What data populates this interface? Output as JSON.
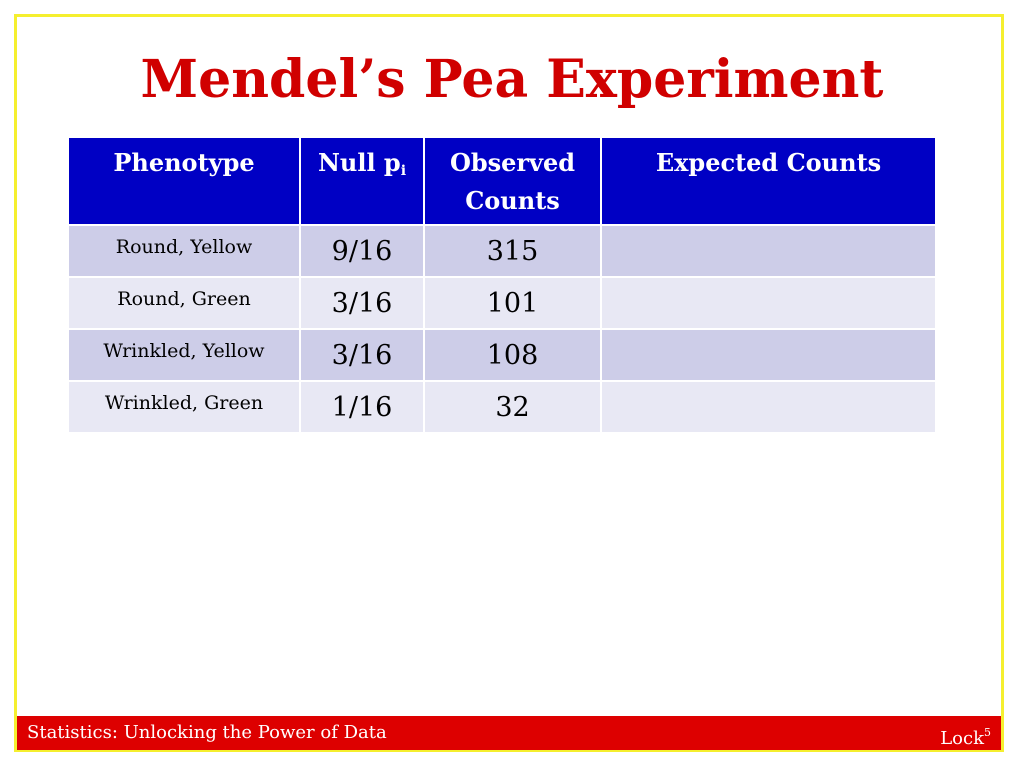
{
  "slide": {
    "title": "Mendel’s Pea Experiment"
  },
  "table": {
    "headers": {
      "phenotype": "Phenotype",
      "null_p": "Null p",
      "null_p_sub": "i",
      "observed_line1": "Observed",
      "observed_line2": "Counts",
      "expected": "Expected Counts"
    },
    "rows": [
      {
        "phenotype": "Round, Yellow",
        "null_p": "9/16",
        "observed": "315",
        "expected": ""
      },
      {
        "phenotype": "Round, Green",
        "null_p": "3/16",
        "observed": "101",
        "expected": ""
      },
      {
        "phenotype": "Wrinkled, Yellow",
        "null_p": "3/16",
        "observed": "108",
        "expected": ""
      },
      {
        "phenotype": "Wrinkled, Green",
        "null_p": "1/16",
        "observed": "32",
        "expected": ""
      }
    ]
  },
  "footer": {
    "left_text": "Statistics: Unlocking the Power of Data",
    "right_text": "Lock",
    "right_sup": "5"
  },
  "colors": {
    "title": "#d00000",
    "header_bg": "#0000c4",
    "row_dark": "#cdcde8",
    "row_light": "#e8e8f4",
    "footer_bg": "#dd0000",
    "frame_border": "#f5ef2f"
  }
}
